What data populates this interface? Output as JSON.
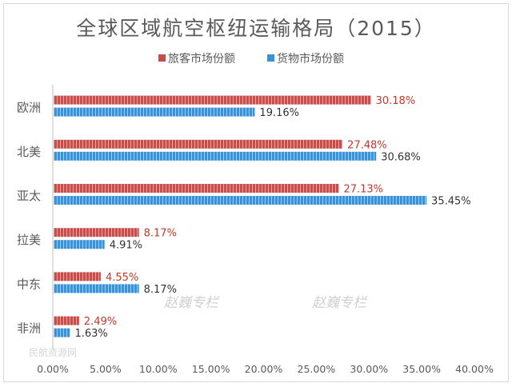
{
  "chart_data": {
    "type": "bar",
    "orientation": "horizontal",
    "title": "全球区域航空枢纽运输格局（2015）",
    "categories": [
      "欧洲",
      "北美",
      "亚太",
      "拉美",
      "中东",
      "非洲"
    ],
    "series": [
      {
        "name": "旅客市场份额",
        "color": "#c0504d",
        "label_color": "#c0392b",
        "values": [
          30.18,
          27.48,
          27.13,
          8.17,
          4.55,
          2.49
        ],
        "labels": [
          "30.18%",
          "27.48%",
          "27.13%",
          "8.17%",
          "4.55%",
          "2.49%"
        ]
      },
      {
        "name": "货物市场份额",
        "color": "#3f8fd2",
        "label_color": "#333333",
        "values": [
          19.16,
          30.68,
          35.45,
          4.91,
          8.17,
          1.63
        ],
        "labels": [
          "19.16%",
          "30.68%",
          "35.45%",
          "4.91%",
          "8.17%",
          "1.63%"
        ]
      }
    ],
    "xlim": [
      0,
      40
    ],
    "xticks": [
      "0.00%",
      "5.00%",
      "10.00%",
      "15.00%",
      "20.00%",
      "25.00%",
      "30.00%",
      "35.00%",
      "40.00%"
    ],
    "grid": false,
    "legend_position": "top-center",
    "watermarks": [
      "赵巍专栏",
      "赵巍专栏",
      "民航资源网"
    ]
  }
}
